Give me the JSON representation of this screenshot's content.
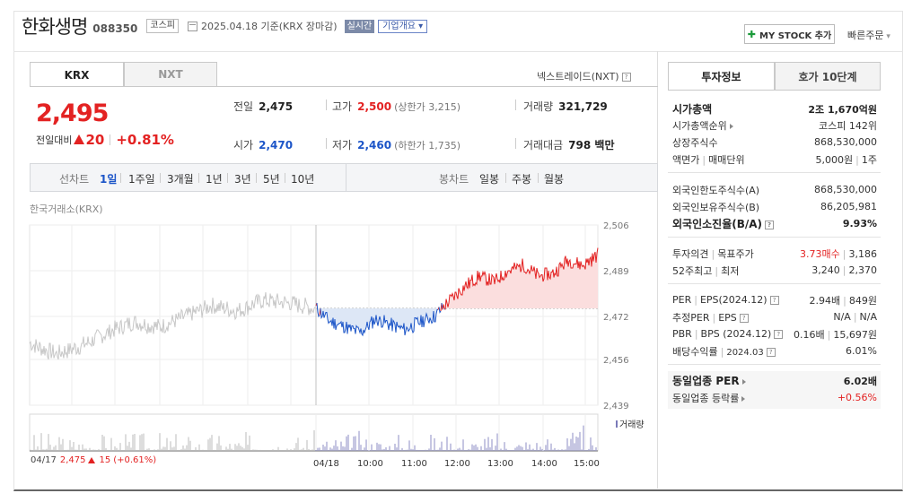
{
  "header": {
    "company": "한화생명",
    "code": "088350",
    "market": "코스피",
    "date_text": "2025.04.18 기준(KRX 장마감)",
    "live_label": "실시간",
    "company_info_label": "기업개요",
    "my_stock_label": "MY STOCK 추가",
    "quick_order_label": "빠른주문"
  },
  "tabs": {
    "krx": "KRX",
    "nxt": "NXT",
    "nextrade": "넥스트레이드(NXT)"
  },
  "price": {
    "current": "2,495",
    "change_label": "전일대비",
    "change": "20",
    "change_pct": "+0.81%"
  },
  "stats": {
    "prev_label": "전일",
    "prev": "2,475",
    "high_label": "고가",
    "high": "2,500",
    "high_limit": "(상한가 3,215)",
    "volume_label": "거래량",
    "volume": "321,729",
    "open_label": "시가",
    "open": "2,470",
    "low_label": "저가",
    "low": "2,460",
    "low_limit": "(하한가 1,735)",
    "amount_label": "거래대금",
    "amount": "798 백만"
  },
  "period": {
    "line_label": "선차트",
    "line_items": [
      "1일",
      "1주일",
      "3개월",
      "1년",
      "3년",
      "5년",
      "10년"
    ],
    "candle_label": "봉차트",
    "candle_items": [
      "일봉",
      "주봉",
      "월봉"
    ]
  },
  "chart_data": {
    "type": "line",
    "source_label": "한국거래소(KRX)",
    "y_ticks": [
      2506,
      2489,
      2472,
      2456,
      2439
    ],
    "ylim": [
      2439,
      2506
    ],
    "baseline": 2475,
    "x_ticks": [
      "04/18",
      "10:00",
      "11:00",
      "12:00",
      "13:00",
      "14:00",
      "15:00"
    ],
    "volume_label": "거래량",
    "prev_day": {
      "date": "04/17",
      "close": "2,475",
      "change": "15",
      "change_pct": "(+0.61%)"
    },
    "series": [
      {
        "values": [
          2462,
          2458,
          2461,
          2466,
          2470,
          2468,
          2472,
          2476,
          2474,
          2478,
          2477,
          2475
        ]
      },
      {
        "values": [
          2475,
          2470,
          2468,
          2466,
          2471,
          2469,
          2467,
          2470,
          2472,
          2478,
          2483,
          2487,
          2485,
          2489,
          2491,
          2487,
          2488,
          2493,
          2491,
          2495
        ]
      }
    ]
  },
  "right": {
    "tab_invest": "투자정보",
    "tab_hoga": "호가 10단계",
    "rows": [
      {
        "k": "시가총액",
        "v": "2조 1,670억원"
      },
      {
        "k": "시가총액순위",
        "v": "코스피 142위"
      },
      {
        "k": "상장주식수",
        "v": "868,530,000"
      },
      {
        "k": "액면가",
        "k2": "매매단위",
        "v": "5,000원",
        "v2": "1주"
      },
      {
        "k": "외국인한도주식수(A)",
        "v": "868,530,000"
      },
      {
        "k": "외국인보유주식수(B)",
        "v": "86,205,981"
      },
      {
        "k": "외국인소진율(B/A)",
        "v": "9.93%"
      },
      {
        "k": "투자의견",
        "k2": "목표주가",
        "v": "3.73매수",
        "v2": "3,186"
      },
      {
        "k": "52주최고",
        "k2": "최저",
        "v": "3,240",
        "v2": "2,370"
      },
      {
        "k": "PER",
        "k2": "EPS(2024.12)",
        "v": "2.94배",
        "v2": "849원"
      },
      {
        "k": "추정PER",
        "k2": "EPS",
        "v": "N/A",
        "v2": "N/A"
      },
      {
        "k": "PBR",
        "k2": "BPS (2024.12)",
        "v": "0.16배",
        "v2": "15,697원"
      },
      {
        "k": "배당수익률",
        "k2": "2024.03",
        "v": "6.01%"
      },
      {
        "k": "동일업종 PER",
        "v": "6.02배"
      },
      {
        "k": "동일업종 등락률",
        "v": "+0.56%"
      }
    ]
  },
  "colors": {
    "up": "#e32222",
    "down": "#1c55c8",
    "grey": "#c7c7c7"
  }
}
